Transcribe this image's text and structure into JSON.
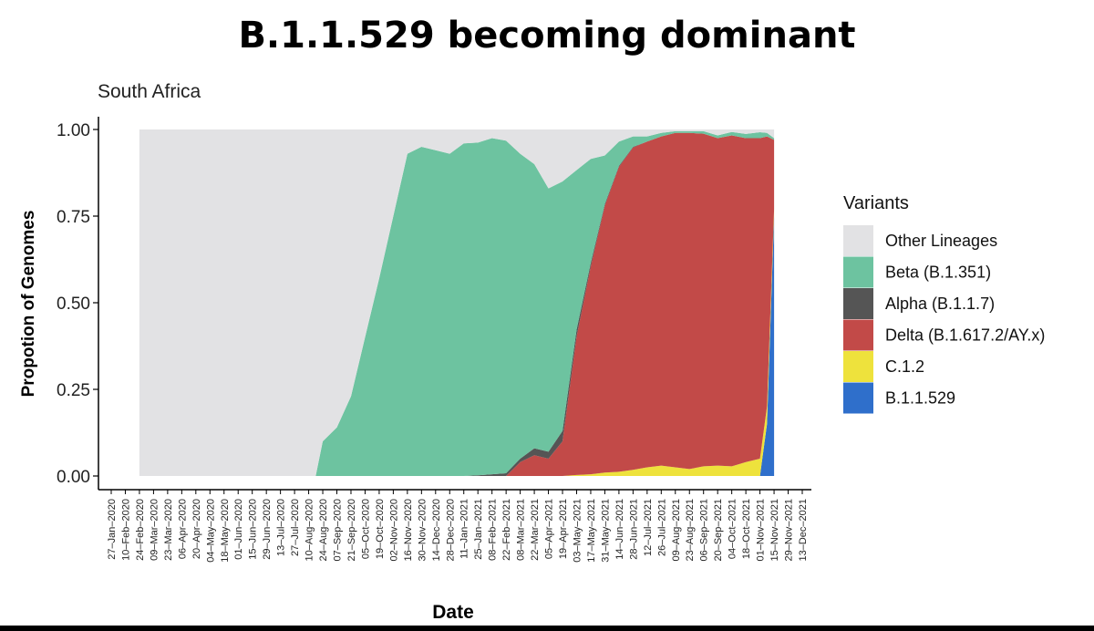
{
  "slide": {
    "title": "B.1.1.529 becoming dominant"
  },
  "chart_data": {
    "type": "area",
    "stacked": true,
    "subtitle": "South Africa",
    "xlabel": "Date",
    "ylabel": "Propotion of Genomes",
    "ylim": [
      0,
      1
    ],
    "yticks": [
      0,
      0.25,
      0.5,
      0.75,
      1
    ],
    "ytick_labels": [
      "0.00",
      "0.25",
      "0.50",
      "0.75",
      "1.00"
    ],
    "grid": false,
    "legend": {
      "title": "Variants",
      "position": "right"
    },
    "x_tick_labels": [
      "27–Jan–2020",
      "10–Feb–2020",
      "24–Feb–2020",
      "09–Mar–2020",
      "23–Mar–2020",
      "06–Apr–2020",
      "20–Apr–2020",
      "04–May–2020",
      "18–May–2020",
      "01–Jun–2020",
      "15–Jun–2020",
      "29–Jun–2020",
      "13–Jul–2020",
      "27–Jul–2020",
      "10–Aug–2020",
      "24–Aug–2020",
      "07–Sep–2020",
      "21–Sep–2020",
      "05–Oct–2020",
      "19–Oct–2020",
      "02–Nov–2020",
      "16–Nov–2020",
      "30–Nov–2020",
      "14–Dec–2020",
      "28–Dec–2020",
      "11–Jan–2021",
      "25–Jan–2021",
      "08–Feb–2021",
      "22–Feb–2021",
      "08–Mar–2021",
      "22–Mar–2021",
      "05–Apr–2021",
      "19–Apr–2021",
      "03–May–2021",
      "17–May–2021",
      "31–May–2021",
      "14–Jun–2021",
      "28–Jun–2021",
      "12–Jul–2021",
      "26–Jul–2021",
      "09–Aug–2021",
      "23–Aug–2021",
      "06–Sep–2021",
      "20–Sep–2021",
      "04–Oct–2021",
      "18–Oct–2021",
      "01–Nov–2021",
      "15–Nov–2021",
      "29–Nov–2021",
      "13–Dec–2021"
    ],
    "x_index_range": [
      0,
      49
    ],
    "x": [
      2,
      3,
      4,
      5,
      6,
      7,
      8,
      9,
      10,
      11,
      12,
      13,
      14,
      14.5,
      15,
      16,
      17,
      18,
      19,
      20,
      21,
      22,
      23,
      24,
      25,
      26,
      27,
      28,
      29,
      30,
      31,
      32,
      33,
      34,
      35,
      36,
      37,
      38,
      39,
      40,
      41,
      42,
      43,
      44,
      45,
      46,
      46.5,
      47
    ],
    "series": [
      {
        "name": "B.1.1.529",
        "color": "#2F6FCB",
        "values": [
          0,
          0,
          0,
          0,
          0,
          0,
          0,
          0,
          0,
          0,
          0,
          0,
          0,
          0,
          0,
          0,
          0,
          0,
          0,
          0,
          0,
          0,
          0,
          0,
          0,
          0,
          0,
          0,
          0,
          0,
          0,
          0,
          0,
          0,
          0,
          0,
          0,
          0,
          0,
          0,
          0,
          0,
          0,
          0,
          0,
          0,
          0.15,
          0.75
        ]
      },
      {
        "name": "C.1.2",
        "color": "#EEE23C",
        "values": [
          0,
          0,
          0,
          0,
          0,
          0,
          0,
          0,
          0,
          0,
          0,
          0,
          0,
          0,
          0,
          0,
          0,
          0,
          0,
          0,
          0,
          0,
          0,
          0,
          0,
          0,
          0,
          0,
          0,
          0,
          0,
          0,
          0.003,
          0.005,
          0.01,
          0.012,
          0.018,
          0.025,
          0.03,
          0.025,
          0.02,
          0.028,
          0.03,
          0.028,
          0.04,
          0.05,
          0.05,
          0.02
        ]
      },
      {
        "name": "Delta (B.1.617.2/AY.x)",
        "color": "#C24A48",
        "values": [
          0,
          0,
          0,
          0,
          0,
          0,
          0,
          0,
          0,
          0,
          0,
          0,
          0,
          0,
          0,
          0,
          0,
          0,
          0,
          0,
          0,
          0,
          0,
          0,
          0,
          0,
          0,
          0,
          0.04,
          0.06,
          0.05,
          0.1,
          0.4,
          0.6,
          0.77,
          0.88,
          0.93,
          0.94,
          0.95,
          0.965,
          0.97,
          0.96,
          0.945,
          0.955,
          0.935,
          0.925,
          0.78,
          0.2
        ]
      },
      {
        "name": "Alpha (B.1.1.7)",
        "color": "#555555",
        "values": [
          0,
          0,
          0,
          0,
          0,
          0,
          0,
          0,
          0,
          0,
          0,
          0,
          0,
          0,
          0,
          0,
          0,
          0,
          0,
          0,
          0,
          0,
          0,
          0,
          0,
          0.002,
          0.005,
          0.008,
          0.01,
          0.02,
          0.02,
          0.03,
          0.02,
          0.01,
          0.005,
          0.003,
          0.002,
          0,
          0,
          0,
          0,
          0,
          0,
          0,
          0,
          0,
          0,
          0
        ]
      },
      {
        "name": "Beta (B.1.351)",
        "color": "#6DC3A0",
        "values": [
          0,
          0,
          0,
          0,
          0,
          0,
          0,
          0,
          0,
          0,
          0,
          0,
          0,
          0,
          0.1,
          0.14,
          0.23,
          0.4,
          0.57,
          0.75,
          0.93,
          0.95,
          0.94,
          0.93,
          0.96,
          0.96,
          0.97,
          0.96,
          0.88,
          0.82,
          0.76,
          0.72,
          0.46,
          0.3,
          0.14,
          0.07,
          0.03,
          0.015,
          0.01,
          0.005,
          0.005,
          0.007,
          0.008,
          0.01,
          0.012,
          0.017,
          0.01,
          0.005
        ]
      },
      {
        "name": "Other Lineages",
        "color": "#E2E2E4",
        "values": [
          1,
          1,
          1,
          1,
          1,
          1,
          1,
          1,
          1,
          1,
          1,
          1,
          1,
          1,
          0.9,
          0.86,
          0.77,
          0.6,
          0.43,
          0.25,
          0.07,
          0.05,
          0.06,
          0.07,
          0.04,
          0.038,
          0.025,
          0.032,
          0.07,
          0.1,
          0.17,
          0.15,
          0.117,
          0.085,
          0.075,
          0.035,
          0.02,
          0.02,
          0.01,
          0.005,
          0.005,
          0.005,
          0.017,
          0.007,
          0.013,
          0.008,
          0.01,
          0.025
        ]
      }
    ],
    "legend_order": [
      "Other Lineages",
      "Beta (B.1.351)",
      "Alpha (B.1.1.7)",
      "Delta (B.1.617.2/AY.x)",
      "C.1.2",
      "B.1.1.529"
    ]
  }
}
